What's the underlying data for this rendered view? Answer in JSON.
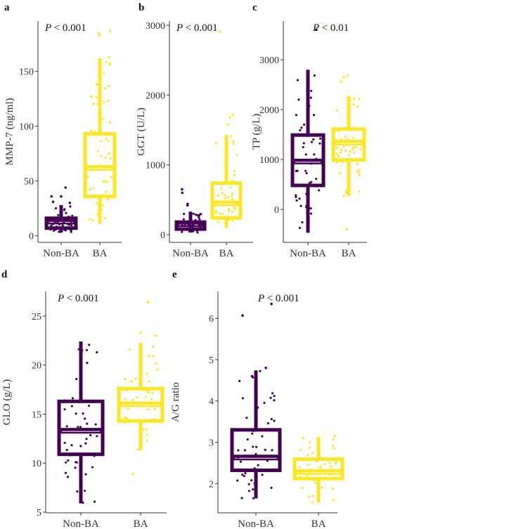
{
  "colors": {
    "Non-BA": "#440154",
    "BA": "#FDE725"
  },
  "chart_data": [
    {
      "type": "box",
      "panel": "a",
      "ylabel": "MMP-7 (ng/ml)",
      "annotation": "< 0.001",
      "annotation_prefix": "P",
      "categories": [
        "Non-BA",
        "BA"
      ],
      "yticks": [
        0,
        50,
        100,
        150
      ],
      "ylim": [
        -6,
        196
      ],
      "groups": [
        {
          "name": "Non-BA",
          "min": 3,
          "q1": 7,
          "median": 13,
          "q3": 16,
          "max": 28,
          "outliers": [
            44,
            36,
            36,
            31,
            30
          ]
        },
        {
          "name": "BA",
          "min": 11,
          "q1": 36,
          "median": 62,
          "q3": 93,
          "max": 162,
          "outliers": [
            187,
            185,
            183,
            163,
            157,
            138,
            127,
            126
          ]
        }
      ]
    },
    {
      "type": "box",
      "panel": "b",
      "ylabel": "GGT (U/L)",
      "annotation": "< 0.001",
      "annotation_prefix": "P",
      "categories": [
        "Non-BA",
        "BA"
      ],
      "yticks": [
        0,
        1000,
        2000,
        3000
      ],
      "ylim": [
        -110,
        3060
      ],
      "groups": [
        {
          "name": "Non-BA",
          "min": 30,
          "q1": 80,
          "median": 150,
          "q3": 180,
          "max": 330,
          "outliers": [
            650,
            600,
            440,
            420
          ]
        },
        {
          "name": "BA",
          "min": 100,
          "q1": 240,
          "median": 450,
          "q3": 740,
          "max": 1430,
          "outliers": [
            2910,
            1720,
            1680,
            1580
          ]
        }
      ]
    },
    {
      "type": "box",
      "panel": "c",
      "ylabel": "TP (g/L)",
      "annotation": "< 0.01",
      "annotation_prefix": "P",
      "categories": [
        "Non-BA",
        "BA"
      ],
      "yticks": [
        0,
        1000,
        2000,
        3000
      ],
      "ylim": [
        -662,
        3775
      ],
      "groups": [
        {
          "name": "Non-BA",
          "min": -470,
          "q1": 480,
          "median": 960,
          "q3": 1490,
          "max": 2800,
          "outliers": [
            3600
          ]
        },
        {
          "name": "BA",
          "min": 270,
          "q1": 990,
          "median": 1340,
          "q3": 1610,
          "max": 2270,
          "outliers": [
            2680,
            2650,
            2560,
            -400
          ]
        }
      ]
    },
    {
      "type": "box",
      "panel": "d",
      "ylabel": "GLO (g/L)",
      "annotation": "< 0.001",
      "annotation_prefix": "P",
      "categories": [
        "Non-BA",
        "BA"
      ],
      "yticks": [
        5,
        10,
        15,
        20,
        25
      ],
      "ylim": [
        4.93,
        27.5
      ],
      "groups": [
        {
          "name": "Non-BA",
          "min": 5.9,
          "q1": 10.9,
          "median": 13.3,
          "q3": 16.3,
          "max": 22.4,
          "outliers": []
        },
        {
          "name": "BA",
          "min": 11.3,
          "q1": 14.3,
          "median": 16.0,
          "q3": 17.6,
          "max": 22.3,
          "outliers": [
            26.4,
            23.3,
            23.0,
            8.9
          ]
        }
      ]
    },
    {
      "type": "box",
      "panel": "e",
      "ylabel": "A/G ratio",
      "annotation": "< 0.001",
      "annotation_prefix": "P",
      "categories": [
        "Non-BA",
        "BA"
      ],
      "yticks": [
        2,
        3,
        4,
        5,
        6
      ],
      "ylim": [
        1.29,
        6.65
      ],
      "groups": [
        {
          "name": "Non-BA",
          "min": 1.64,
          "q1": 2.32,
          "median": 2.63,
          "q3": 3.3,
          "max": 4.74,
          "outliers": [
            6.35,
            6.07,
            4.8,
            4.6
          ]
        },
        {
          "name": "BA",
          "min": 1.54,
          "q1": 2.12,
          "median": 2.28,
          "q3": 2.59,
          "max": 3.13,
          "outliers": [
            3.15
          ]
        }
      ]
    }
  ]
}
